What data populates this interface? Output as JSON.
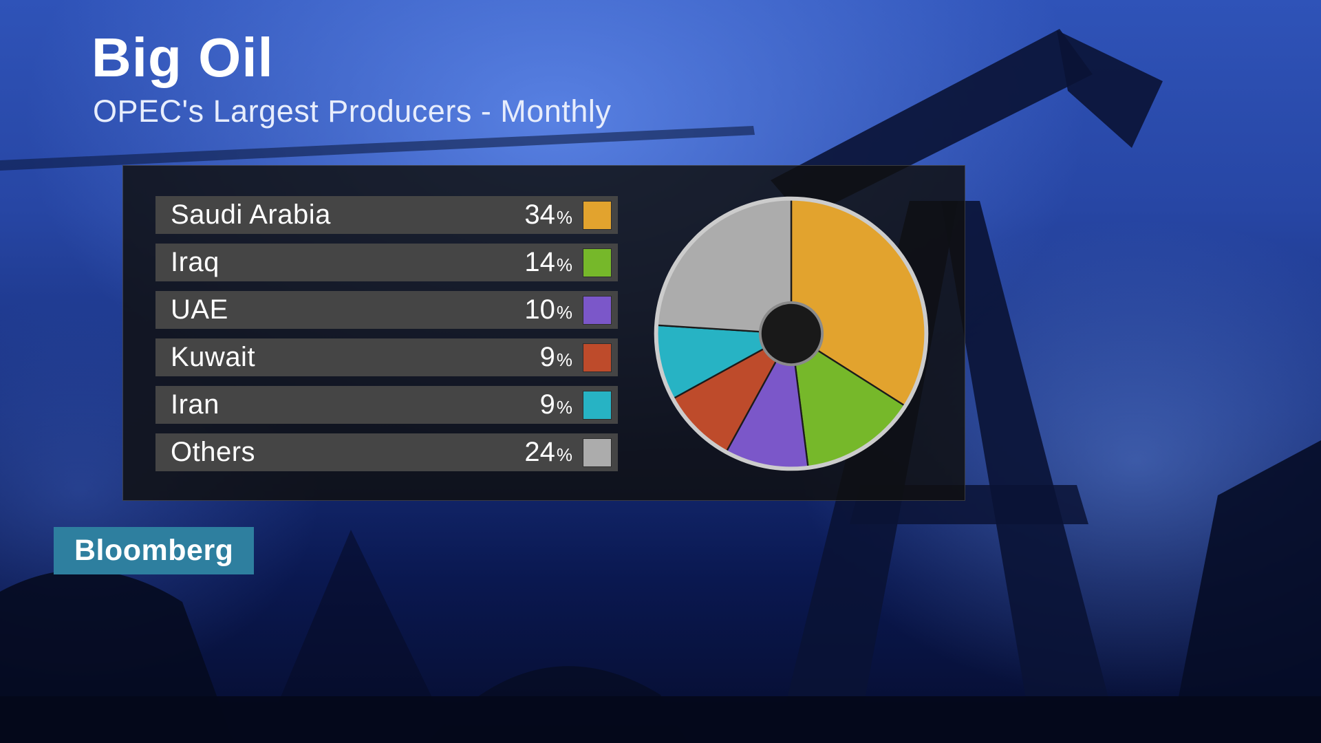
{
  "header": {
    "title": "Big Oil",
    "subtitle": "OPEC's Largest Producers - Monthly"
  },
  "branding": {
    "logo_text": "Bloomberg",
    "bg_color": "#2E7F9F"
  },
  "chart_data": {
    "type": "pie",
    "donut": true,
    "hole_ratio": 0.23,
    "start_angle_deg": -90,
    "direction": "clockwise",
    "title": "Big Oil",
    "subtitle": "OPEC's Largest Producers - Monthly",
    "unit": "%",
    "legend_position": "left",
    "categories": [
      "Saudi Arabia",
      "Iraq",
      "UAE",
      "Kuwait",
      "Iran",
      "Others"
    ],
    "values": [
      34,
      14,
      10,
      9,
      9,
      24
    ],
    "colors": [
      "#E2A32E",
      "#76B82A",
      "#7B57C9",
      "#BE4B2B",
      "#27B3C4",
      "#ACACAC"
    ],
    "pie_outline_color": "#CCCCCC",
    "hole_color": "#191919",
    "hole_outline_color": "#8A8A8A"
  }
}
